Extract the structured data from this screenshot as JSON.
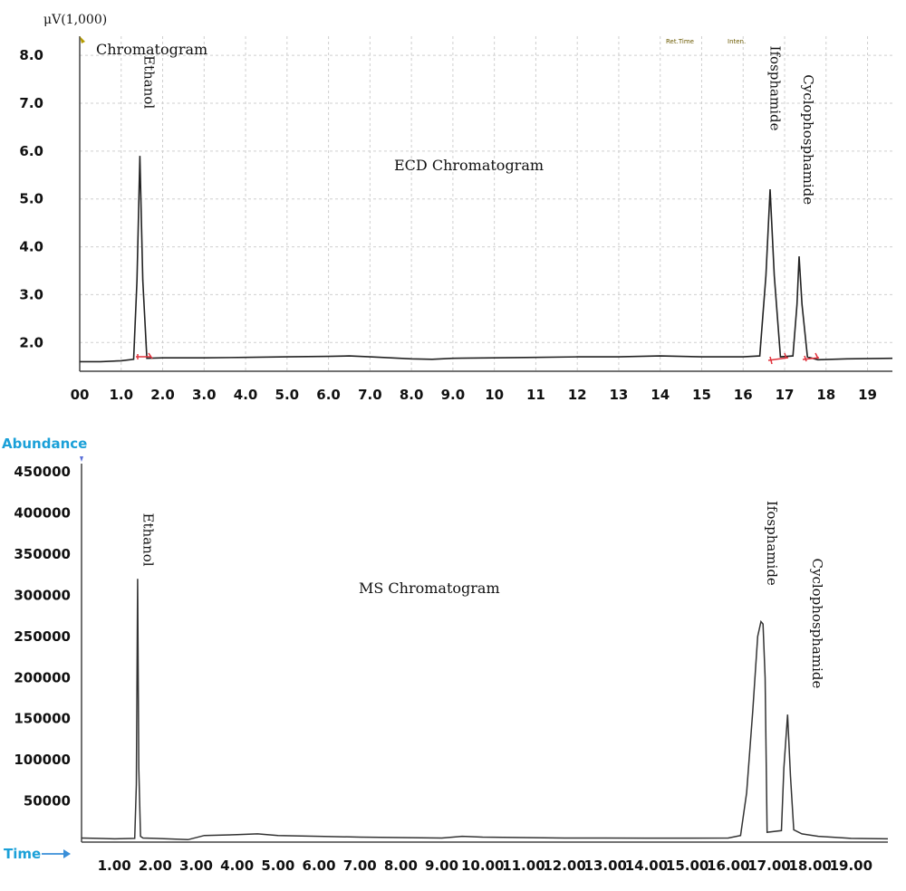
{
  "chart_data": [
    {
      "type": "line",
      "title": "ECD Chromatogram",
      "corner_label": "Chromatogram",
      "unit_label": "μV(1,000)",
      "small_labels": [
        "Ret.Time",
        "Inten."
      ],
      "xlim": [
        0,
        19.6
      ],
      "ylim": [
        1.4,
        8.4
      ],
      "x_ticks": [
        {
          "v": 0,
          "label": "00"
        },
        {
          "v": 1,
          "label": "1.0"
        },
        {
          "v": 2,
          "label": "2.0"
        },
        {
          "v": 3,
          "label": "3.0"
        },
        {
          "v": 4,
          "label": "4.0"
        },
        {
          "v": 5,
          "label": "5.0"
        },
        {
          "v": 6,
          "label": "6.0"
        },
        {
          "v": 7,
          "label": "7.0"
        },
        {
          "v": 8,
          "label": "8.0"
        },
        {
          "v": 9,
          "label": "9.0"
        },
        {
          "v": 10,
          "label": "10"
        },
        {
          "v": 11,
          "label": "11"
        },
        {
          "v": 12,
          "label": "12"
        },
        {
          "v": 13,
          "label": "13"
        },
        {
          "v": 14,
          "label": "14"
        },
        {
          "v": 15,
          "label": "15"
        },
        {
          "v": 16,
          "label": "16"
        },
        {
          "v": 17,
          "label": "17"
        },
        {
          "v": 18,
          "label": "18"
        },
        {
          "v": 19,
          "label": "19"
        }
      ],
      "y_ticks": [
        {
          "v": 2,
          "label": "2.0"
        },
        {
          "v": 3,
          "label": "3.0"
        },
        {
          "v": 4,
          "label": "4.0"
        },
        {
          "v": 5,
          "label": "5.0"
        },
        {
          "v": 6,
          "label": "6.0"
        },
        {
          "v": 7,
          "label": "7.0"
        },
        {
          "v": 8,
          "label": "8.0"
        }
      ],
      "peaks": [
        {
          "name": "Ethanol",
          "rt": 1.45,
          "height": 5.9,
          "label_x": 1.45,
          "label_top": 8.0
        },
        {
          "name": "Ifosphamide",
          "rt": 16.65,
          "height": 5.2,
          "label_x": 16.55,
          "label_top": 8.2
        },
        {
          "name": "Cyclophosphamide",
          "rt": 17.35,
          "height": 3.8,
          "label_x": 17.35,
          "label_top": 7.6
        }
      ],
      "series": [
        {
          "x": [
            0,
            0.5,
            1.0,
            1.3,
            1.38,
            1.45,
            1.52,
            1.62,
            2.0,
            3.0,
            4.0,
            5.0,
            6.0,
            6.5,
            7.0,
            8.0,
            8.5,
            9.0,
            10.0,
            11.0,
            12.0,
            13.0,
            14.0,
            15.0,
            16.0,
            16.4,
            16.55,
            16.65,
            16.75,
            16.9,
            17.2,
            17.3,
            17.35,
            17.42,
            17.55,
            17.8,
            18.5,
            19.6
          ],
          "y": [
            1.6,
            1.6,
            1.62,
            1.65,
            3.3,
            5.9,
            3.3,
            1.67,
            1.68,
            1.68,
            1.69,
            1.7,
            1.71,
            1.72,
            1.7,
            1.66,
            1.65,
            1.67,
            1.68,
            1.69,
            1.7,
            1.7,
            1.72,
            1.7,
            1.7,
            1.72,
            3.4,
            5.2,
            3.4,
            1.7,
            1.72,
            2.8,
            3.8,
            2.8,
            1.7,
            1.64,
            1.66,
            1.67
          ]
        }
      ]
    },
    {
      "type": "line",
      "title": "MS Chromatogram",
      "ylabel": "Abundance",
      "xlabel": "Time",
      "xlim": [
        0.2,
        19.9
      ],
      "ylim": [
        0,
        460000
      ],
      "x_ticks": [
        {
          "v": 1,
          "label": "1.00"
        },
        {
          "v": 2,
          "label": "2.00"
        },
        {
          "v": 3,
          "label": "3.00"
        },
        {
          "v": 4,
          "label": "4.00"
        },
        {
          "v": 5,
          "label": "5.00"
        },
        {
          "v": 6,
          "label": "6.00"
        },
        {
          "v": 7,
          "label": "7.00"
        },
        {
          "v": 8,
          "label": "8.00"
        },
        {
          "v": 9,
          "label": "9.00"
        },
        {
          "v": 10,
          "label": "10.00"
        },
        {
          "v": 11,
          "label": "11.00"
        },
        {
          "v": 12,
          "label": "12.00"
        },
        {
          "v": 13,
          "label": "13.00"
        },
        {
          "v": 14,
          "label": "14.00"
        },
        {
          "v": 15,
          "label": "15.00"
        },
        {
          "v": 16,
          "label": "16.00"
        },
        {
          "v": 17,
          "label": "17.00"
        },
        {
          "v": 18,
          "label": "18.00"
        },
        {
          "v": 19,
          "label": "19.00"
        }
      ],
      "y_ticks": [
        {
          "v": 50000,
          "label": "50000"
        },
        {
          "v": 100000,
          "label": "100000"
        },
        {
          "v": 150000,
          "label": "150000"
        },
        {
          "v": 200000,
          "label": "200000"
        },
        {
          "v": 250000,
          "label": "250000"
        },
        {
          "v": 300000,
          "label": "300000"
        },
        {
          "v": 350000,
          "label": "350000"
        },
        {
          "v": 400000,
          "label": "400000"
        },
        {
          "v": 450000,
          "label": "450000"
        }
      ],
      "peaks": [
        {
          "name": "Ethanol",
          "rt": 1.57,
          "height": 320000,
          "label_x": 1.6,
          "label_top": 400000
        },
        {
          "name": "Ifosphamide",
          "rt": 16.85,
          "height": 265000,
          "label_x": 16.85,
          "label_top": 415000
        },
        {
          "name": "Cyclophosphamide",
          "rt": 17.45,
          "height": 155000,
          "label_x": 17.95,
          "label_top": 345000
        }
      ],
      "series": [
        {
          "x": [
            0.2,
            0.6,
            1.0,
            1.5,
            1.54,
            1.57,
            1.6,
            1.64,
            1.7,
            2.0,
            2.8,
            3.2,
            4.0,
            4.5,
            5.0,
            6.0,
            7.0,
            8.0,
            9.0,
            9.5,
            10.0,
            11.0,
            12.0,
            13.0,
            14.0,
            15.0,
            16.0,
            16.3,
            16.45,
            16.6,
            16.72,
            16.8,
            16.85,
            16.9,
            16.95,
            17.3,
            17.36,
            17.45,
            17.52,
            17.6,
            17.8,
            18.2,
            18.7,
            19.0,
            19.9
          ],
          "y": [
            5000,
            4500,
            4000,
            4500,
            70000,
            320000,
            90000,
            7000,
            5000,
            4500,
            3000,
            8000,
            9000,
            10000,
            8000,
            7000,
            6000,
            5500,
            5000,
            7000,
            6000,
            5500,
            5000,
            5000,
            4800,
            4800,
            5000,
            8000,
            60000,
            160000,
            250000,
            268000,
            265000,
            200000,
            12000,
            14000,
            90000,
            155000,
            80000,
            15000,
            10000,
            7000,
            5500,
            4500,
            4000
          ]
        }
      ]
    }
  ]
}
